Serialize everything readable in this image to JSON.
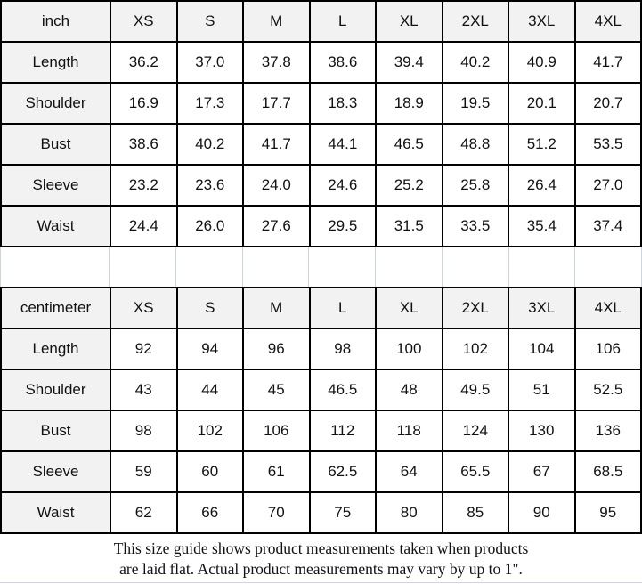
{
  "chart_data": [
    {
      "type": "table",
      "title": "inch",
      "columns": [
        "inch",
        "XS",
        "S",
        "M",
        "L",
        "XL",
        "2XL",
        "3XL",
        "4XL"
      ],
      "rows": [
        [
          "Length",
          "36.2",
          "37.0",
          "37.8",
          "38.6",
          "39.4",
          "40.2",
          "40.9",
          "41.7"
        ],
        [
          "Shoulder",
          "16.9",
          "17.3",
          "17.7",
          "18.3",
          "18.9",
          "19.5",
          "20.1",
          "20.7"
        ],
        [
          "Bust",
          "38.6",
          "40.2",
          "41.7",
          "44.1",
          "46.5",
          "48.8",
          "51.2",
          "53.5"
        ],
        [
          "Sleeve",
          "23.2",
          "23.6",
          "24.0",
          "24.6",
          "25.2",
          "25.8",
          "26.4",
          "27.0"
        ],
        [
          "Waist",
          "24.4",
          "26.0",
          "27.6",
          "29.5",
          "31.5",
          "33.5",
          "35.4",
          "37.4"
        ]
      ]
    },
    {
      "type": "table",
      "title": "centimeter",
      "columns": [
        "centimeter",
        "XS",
        "S",
        "M",
        "L",
        "XL",
        "2XL",
        "3XL",
        "4XL"
      ],
      "rows": [
        [
          "Length",
          "92",
          "94",
          "96",
          "98",
          "100",
          "102",
          "104",
          "106"
        ],
        [
          "Shoulder",
          "43",
          "44",
          "45",
          "46.5",
          "48",
          "49.5",
          "51",
          "52.5"
        ],
        [
          "Bust",
          "98",
          "102",
          "106",
          "112",
          "118",
          "124",
          "130",
          "136"
        ],
        [
          "Sleeve",
          "59",
          "60",
          "61",
          "62.5",
          "64",
          "65.5",
          "67",
          "68.5"
        ],
        [
          "Waist",
          "62",
          "66",
          "70",
          "75",
          "80",
          "85",
          "90",
          "95"
        ]
      ]
    }
  ],
  "footer": {
    "line1": "This size guide shows product measurements taken when products",
    "line2": "are laid flat. Actual product measurements may vary by up to 1\"."
  },
  "colors": {
    "header_bg": "#f2f2f2",
    "cell_bg": "#ffffff",
    "border": "#000000",
    "grid_faint": "#ccd5e0",
    "text": "#111111"
  }
}
